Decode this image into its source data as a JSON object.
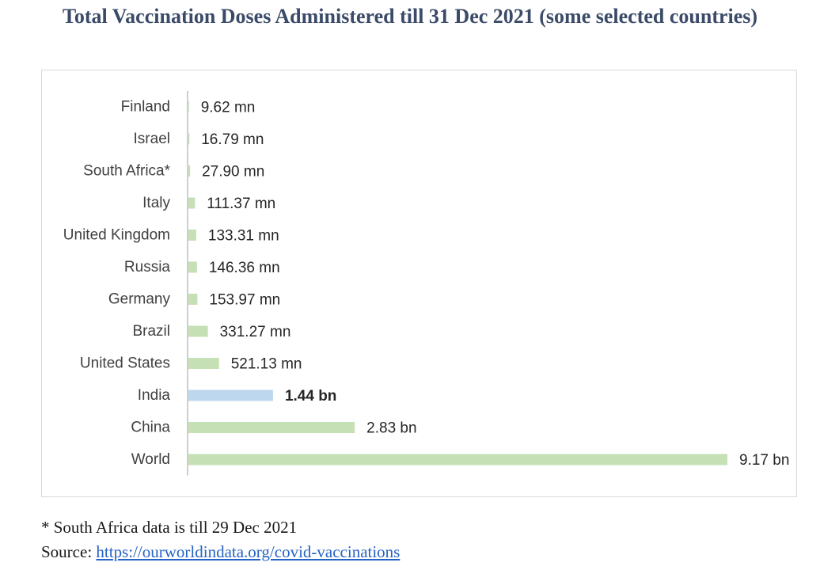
{
  "chart_data": {
    "type": "bar",
    "orientation": "horizontal",
    "title": "Total Vaccination Doses Administered till 31 Dec 2021 (some selected countries)",
    "xlabel": "",
    "ylabel": "",
    "unit": "million doses",
    "grid": false,
    "legend": "none",
    "categories": [
      "Finland",
      "Israel",
      "South Africa*",
      "Italy",
      "United Kingdom",
      "Russia",
      "Germany",
      "Brazil",
      "United States",
      "India",
      "China",
      "World"
    ],
    "values": [
      9.62,
      16.79,
      27.9,
      111.37,
      133.31,
      146.36,
      153.97,
      331.27,
      521.13,
      1440,
      2830,
      9170
    ],
    "data_labels": [
      "9.62 mn",
      "16.79 mn",
      "27.90 mn",
      "111.37 mn",
      "133.31 mn",
      "146.36 mn",
      "153.97 mn",
      "331.27 mn",
      "521.13 mn",
      "1.44 bn",
      "2.83 bn",
      "9.17 bn"
    ],
    "highlight": "India",
    "colors": {
      "bar": "#c5e0b4",
      "highlight_bar": "#bdd7ee",
      "axis": "#bfbfbf"
    }
  },
  "footnote": "* South Africa data is till 29 Dec 2021",
  "source": {
    "label": "Source:",
    "link_text": "https://ourworldindata.org/covid-vaccinations"
  }
}
